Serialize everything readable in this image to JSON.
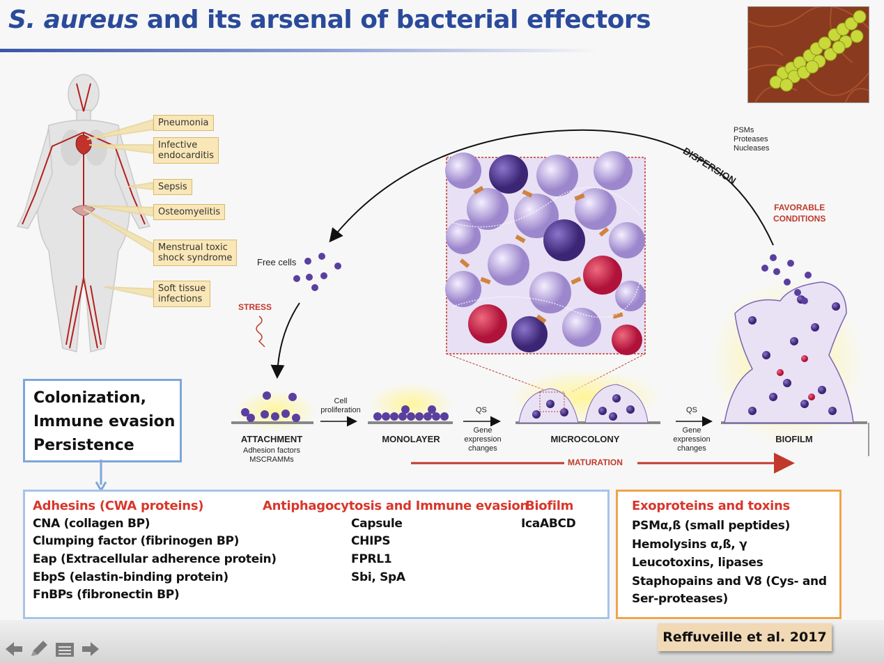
{
  "title": {
    "italic": "S. aureus",
    "rest": " and its arsenal of bacterial effectors"
  },
  "body_callouts": [
    "Pneumonia",
    "Infective\nendocarditis",
    "Sepsis",
    "Osteomyelitis",
    "Menstrual toxic\nshock syndrome",
    "Soft tissue\ninfections"
  ],
  "biofilm": {
    "free_cells": "Free cells",
    "stress": "STRESS",
    "cell_proliferation": "Cell\nproliferation",
    "qs1": "QS",
    "gene1": "Gene\nexpression\nchanges",
    "qs2": "QS",
    "gene2": "Gene\nexpression\nchanges",
    "dispersion": "DISPERSION",
    "dispersal_factors": "PSMs\nProteases\nNucleases",
    "favorable": "FAVORABLE\nCONDITIONS",
    "maturation": "MATURATION",
    "stages": {
      "attachment": "ATTACHMENT",
      "attachment_sub": "Adhesion factors\nMSCRAMMs",
      "monolayer": "MONOLAYER",
      "microcolony": "MICROCOLONY",
      "biofilm": "BIOFILM"
    }
  },
  "colonization": {
    "line1": "Colonization,",
    "line2": "Immune evasion",
    "line3": "Persistence"
  },
  "effectors": {
    "adhesins": {
      "heading": "Adhesins (CWA proteins)",
      "items": [
        "CNA (collagen BP)",
        "Clumping factor (fibrinogen BP)",
        "Eap (Extracellular adherence protein)",
        "EbpS (elastin-binding protein)",
        "FnBPs (fibronectin BP)"
      ]
    },
    "antiphago": {
      "heading": "Antiphagocytosis and Immune evasion",
      "items": [
        "Capsule",
        "CHIPS",
        "FPRL1",
        "Sbi, SpA"
      ]
    },
    "biofilm": {
      "heading": "Biofilm",
      "items": [
        "IcaABCD"
      ]
    }
  },
  "exo": {
    "heading": "Exoproteins and toxins",
    "items": [
      "PSMα,ß (small peptides)",
      "Hemolysins α,ß, γ",
      "Leucotoxins, lipases",
      "Staphopains and V8 (Cys- and\nSer-proteases)"
    ]
  },
  "reference": "Reffuveille et al. 2017",
  "colors": {
    "title": "#2a4a9a",
    "heading_red": "#d8372c",
    "cell_purple": "#5a3fa0",
    "box_blue": "#7ea6db",
    "box_orange": "#efa44a"
  },
  "icons": [
    "arrow-left-icon",
    "pencil-icon",
    "menu-icon",
    "arrow-right-icon"
  ]
}
